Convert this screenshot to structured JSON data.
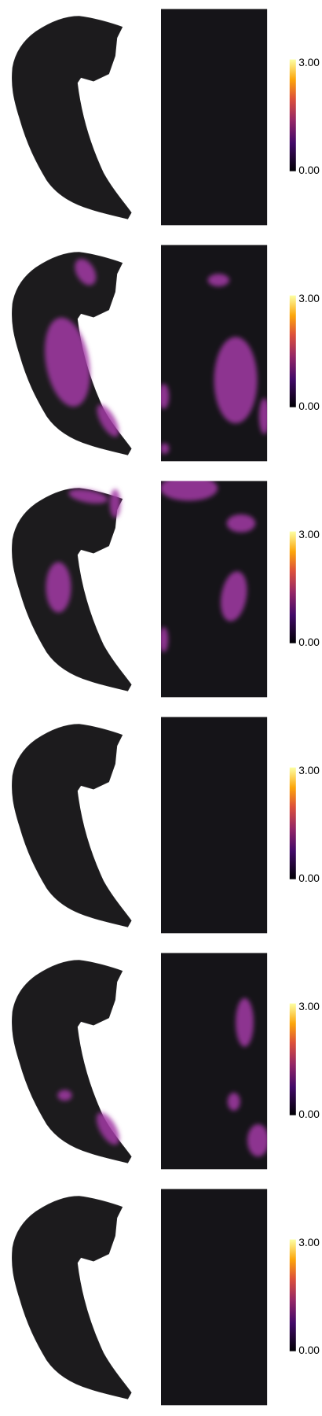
{
  "panels": [
    {
      "colorbar": {
        "max": "3.00",
        "min": "0.00"
      }
    },
    {
      "colorbar": {
        "max": "3.00",
        "min": "0.00"
      }
    },
    {
      "colorbar": {
        "max": "3.00",
        "min": "0.00"
      }
    },
    {
      "colorbar": {
        "max": "3.00",
        "min": "0.00"
      }
    },
    {
      "colorbar": {
        "max": "3.00",
        "min": "0.00"
      }
    },
    {
      "colorbar": {
        "max": "3.00",
        "min": "0.00"
      }
    }
  ]
}
